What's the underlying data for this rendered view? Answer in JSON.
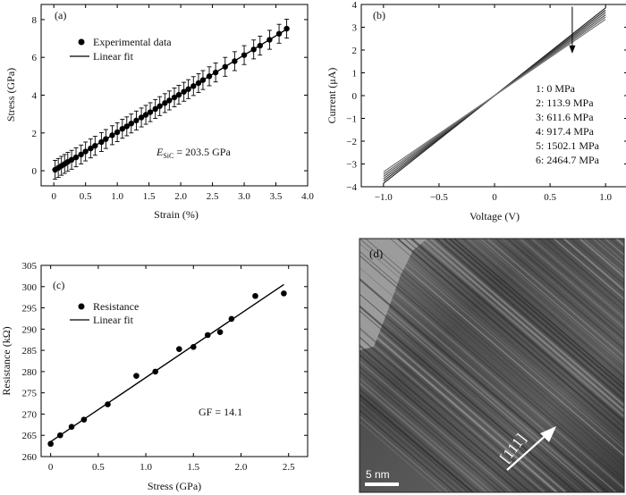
{
  "chart_data": [
    {
      "panel": "(a)",
      "type": "scatter",
      "xlabel": "Strain (%)",
      "ylabel": "Stress (GPa)",
      "xlim": [
        -0.2,
        4.0
      ],
      "ylim": [
        -0.8,
        8.8
      ],
      "xticks": [
        "0",
        "0.5",
        "1.0",
        "1.5",
        "2.0",
        "2.5",
        "3.0",
        "3.5",
        "4.0"
      ],
      "yticks": [
        "0",
        "2",
        "4",
        "6",
        "8"
      ],
      "legend": {
        "placement": "top-left",
        "entries": [
          "Experimental data",
          "Linear fit"
        ]
      },
      "annotation": {
        "E": "E",
        "sub": "SiC",
        "rest": " = 203.5 GPa"
      },
      "fit": {
        "x": [
          0.0,
          3.7
        ],
        "y": [
          0.0,
          7.55
        ]
      },
      "series": [
        {
          "name": "Experimental data",
          "error_bar": 0.5,
          "x": [
            0.02,
            0.07,
            0.12,
            0.17,
            0.22,
            0.28,
            0.35,
            0.43,
            0.5,
            0.58,
            0.65,
            0.75,
            0.82,
            0.92,
            1.0,
            1.08,
            1.15,
            1.22,
            1.3,
            1.38,
            1.45,
            1.52,
            1.6,
            1.67,
            1.75,
            1.82,
            1.9,
            1.97,
            2.05,
            2.12,
            2.2,
            2.28,
            2.35,
            2.45,
            2.55,
            2.7,
            2.85,
            3.0,
            3.15,
            3.25,
            3.4,
            3.55,
            3.67
          ],
          "y": [
            0.05,
            0.15,
            0.26,
            0.36,
            0.47,
            0.58,
            0.71,
            0.86,
            1.02,
            1.18,
            1.32,
            1.52,
            1.68,
            1.88,
            2.04,
            2.22,
            2.35,
            2.5,
            2.66,
            2.82,
            2.96,
            3.1,
            3.27,
            3.42,
            3.58,
            3.72,
            3.88,
            4.02,
            4.18,
            4.32,
            4.48,
            4.64,
            4.8,
            5.0,
            5.2,
            5.5,
            5.8,
            6.12,
            6.42,
            6.62,
            6.93,
            7.25,
            7.52
          ]
        }
      ]
    },
    {
      "panel": "(b)",
      "type": "line",
      "xlabel": "Voltage (V)",
      "ylabel": "Current (μA)",
      "xlim": [
        -1.2,
        1.2
      ],
      "ylim": [
        -4,
        4
      ],
      "xticks": [
        "−1.0",
        "−0.5",
        "0",
        "0.5",
        "1.0"
      ],
      "yticks": [
        "−4",
        "−3",
        "−2",
        "−1",
        "0",
        "1",
        "2",
        "3",
        "4"
      ],
      "legend": {
        "placement": "right",
        "entries": [
          "1: 0 MPa",
          "2: 113.9 MPa",
          "3: 611.6 MPa",
          "4: 917.4 MPa",
          "5: 1502.1 MPa",
          "6: 2464.7 MPa"
        ]
      },
      "arrow": {
        "x": 0.7,
        "y_from": 3.9,
        "y_to": 1.85
      },
      "series": [
        {
          "name": "1: 0 MPa",
          "x": [
            -1.0,
            1.0
          ],
          "y": [
            -3.85,
            3.85
          ]
        },
        {
          "name": "2: 113.9 MPa",
          "x": [
            -1.0,
            1.0
          ],
          "y": [
            -3.75,
            3.75
          ]
        },
        {
          "name": "3: 611.6 MPa",
          "x": [
            -1.0,
            1.0
          ],
          "y": [
            -3.65,
            3.65
          ]
        },
        {
          "name": "4: 917.4 MPa",
          "x": [
            -1.0,
            1.0
          ],
          "y": [
            -3.55,
            3.55
          ]
        },
        {
          "name": "5: 1502.1 MPa",
          "x": [
            -1.0,
            1.0
          ],
          "y": [
            -3.45,
            3.45
          ]
        },
        {
          "name": "6: 2464.7 MPa",
          "x": [
            -1.0,
            1.0
          ],
          "y": [
            -3.35,
            3.35
          ]
        }
      ]
    },
    {
      "panel": "(c)",
      "type": "scatter",
      "xlabel": "Stress (GPa)",
      "ylabel": "Resistance (kΩ)",
      "xlim": [
        -0.1,
        2.7
      ],
      "ylim": [
        260,
        305
      ],
      "xticks": [
        "0",
        "0.5",
        "1.0",
        "1.5",
        "2.0",
        "2.5"
      ],
      "yticks": [
        "260",
        "265",
        "270",
        "275",
        "280",
        "285",
        "290",
        "295",
        "300",
        "305"
      ],
      "legend": {
        "placement": "top-left",
        "entries": [
          "Resistance",
          "Linear fit"
        ]
      },
      "annotation": "GF = 14.1",
      "fit": {
        "x": [
          0.0,
          2.45
        ],
        "y": [
          263.5,
          300.5
        ]
      },
      "series": [
        {
          "name": "Resistance",
          "x": [
            0.0,
            0.1,
            0.22,
            0.35,
            0.6,
            0.9,
            1.1,
            1.35,
            1.5,
            1.65,
            1.78,
            1.9,
            2.15,
            2.45
          ],
          "y": [
            263.0,
            265.0,
            267.0,
            268.7,
            272.3,
            279.0,
            280.0,
            285.3,
            285.8,
            288.6,
            289.3,
            292.4,
            297.8,
            298.4
          ]
        }
      ]
    }
  ],
  "micrograph": {
    "panel": "(d)",
    "scale_bar": "5 nm",
    "direction_label": "[111]"
  }
}
